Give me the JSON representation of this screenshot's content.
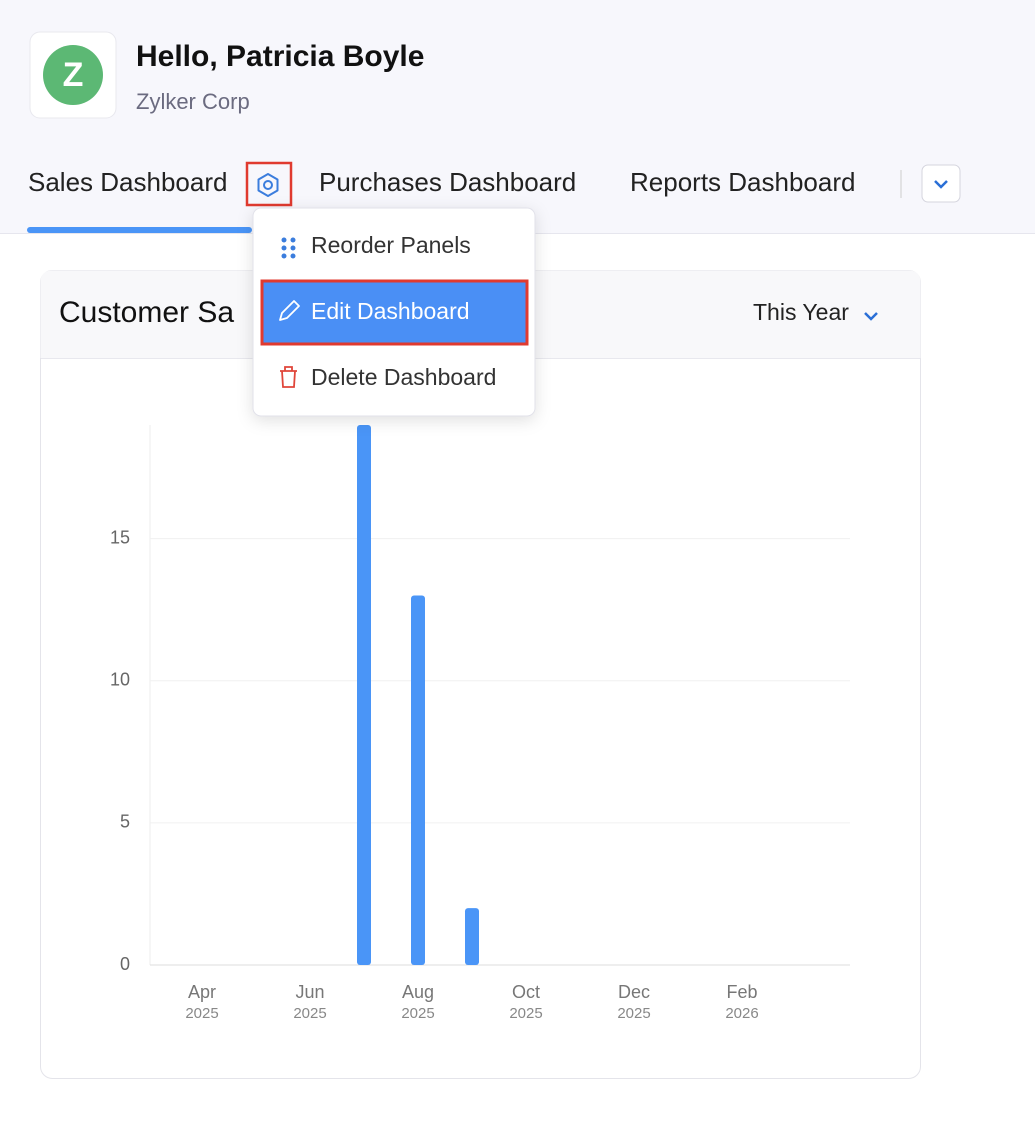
{
  "header": {
    "title": "Hello, Patricia Boyle",
    "subtitle": "Zylker Corp",
    "logo_letter": "Z"
  },
  "tabs": [
    "Sales Dashboard",
    "Purchases Dashboard",
    "Reports Dashboard"
  ],
  "menu": {
    "items": [
      "Reorder Panels",
      "Edit Dashboard",
      "Delete Dashboard"
    ]
  },
  "panel": {
    "period": "This Year"
  },
  "chart_data": {
    "type": "bar",
    "title": "Customer Sa",
    "categories": [
      "Apr",
      null,
      "Jun",
      null,
      "Aug",
      null,
      "Oct",
      null,
      "Dec",
      null,
      "Feb",
      null
    ],
    "category_years": [
      "2025",
      null,
      "2025",
      null,
      "2025",
      null,
      "2025",
      null,
      "2025",
      null,
      "2026",
      null
    ],
    "values": [
      0,
      0,
      0,
      19,
      13,
      2,
      0,
      0,
      0,
      0,
      0,
      0
    ],
    "color": "#4a95f7",
    "ylim": [
      0,
      19
    ],
    "yticks": [
      0,
      5,
      10,
      15
    ],
    "grid": true
  }
}
